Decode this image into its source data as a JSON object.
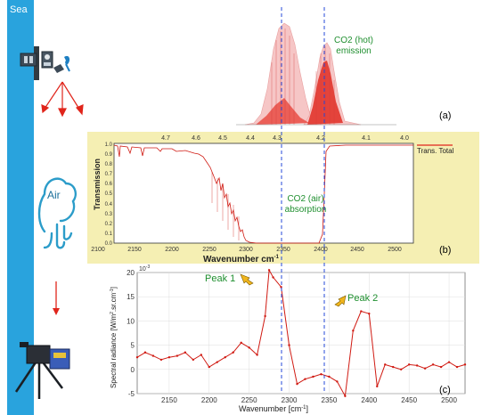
{
  "left_strip": {
    "label": "Sea",
    "color": "#29a3dd"
  },
  "air": {
    "label": "Air"
  },
  "panel_a": {
    "letter": "(a)",
    "annotation_line1": "CO2 (hot)",
    "annotation_line2": "emission"
  },
  "panel_b": {
    "letter": "(b)",
    "ylabel": "Transmission",
    "xlabel": "Wavenumber cm",
    "xlabel_sup": "-1",
    "top_ticks": [
      "4.7",
      "4.6",
      "4.5",
      "4.4",
      "4.3",
      "4.2",
      "4.1",
      "4.0"
    ],
    "bottom_ticks": [
      "2100",
      "2150",
      "2200",
      "2250",
      "2300",
      "2350",
      "2400",
      "2450",
      "2500"
    ],
    "y_ticks": [
      "0.0",
      "0.1",
      "0.2",
      "0.3",
      "0.4",
      "0.5",
      "0.6",
      "0.7",
      "0.8",
      "0.9",
      "1.0"
    ],
    "legend": "Trans. Total",
    "annotation_line1": "CO2 (air)",
    "annotation_line2": "absorption",
    "background": "#f5efb3"
  },
  "panel_c": {
    "letter": "(c)",
    "exponent": "10",
    "exponent_sup": "-3",
    "ylabel": "Spectral radiance [W/m",
    "ylabel_sup": "2",
    "ylabel_end": ".sr.cm",
    "ylabel_sup2": "-1",
    "ylabel_close": "]",
    "xlabel": "Wavenumber [cm",
    "xlabel_sup": "-1",
    "xlabel_close": "]",
    "peak1": "Peak 1",
    "peak2": "Peak 2"
  },
  "chart_data": [
    {
      "type": "line",
      "xlim": [
        2100,
        2500
      ],
      "ylim": [
        0,
        1.0
      ],
      "ylabel": "Transmission",
      "xlabel": "Wavenumber cm-1",
      "series": [
        {
          "name": "Trans. Total",
          "x": [
            2100,
            2103,
            2106,
            2110,
            2120,
            2130,
            2140,
            2150,
            2160,
            2170,
            2180,
            2190,
            2200,
            2210,
            2220,
            2230,
            2240,
            2250,
            2260,
            2270,
            2280,
            2290,
            2300,
            2360,
            2365,
            2370,
            2380,
            2400,
            2450,
            2500
          ],
          "y": [
            0.99,
            0.9,
            0.99,
            0.98,
            0.99,
            0.97,
            0.98,
            0.96,
            0.98,
            0.99,
            0.97,
            0.96,
            0.95,
            0.93,
            0.85,
            0.75,
            0.65,
            0.5,
            0.35,
            0.2,
            0.08,
            0.02,
            0.0,
            0.0,
            0.3,
            0.9,
            0.98,
            0.99,
            0.99,
            0.99
          ]
        }
      ]
    },
    {
      "type": "line",
      "xlim": [
        2110,
        2520
      ],
      "ylim": [
        -5,
        20
      ],
      "yticks": [
        "20",
        "15",
        "10",
        "5",
        "0",
        "-5"
      ],
      "xticks": [
        "2150",
        "2200",
        "2250",
        "2300",
        "2350",
        "2400",
        "2450",
        "2500"
      ],
      "xlabel": "Wavenumber [cm-1]",
      "ylabel": "Spectral radiance [W/m2.sr.cm-1]",
      "series": [
        {
          "x": [
            2110,
            2120,
            2130,
            2140,
            2150,
            2160,
            2170,
            2180,
            2190,
            2200,
            2210,
            2220,
            2230,
            2240,
            2250,
            2260,
            2270,
            2275,
            2280,
            2290,
            2300,
            2310,
            2320,
            2330,
            2340,
            2350,
            2360,
            2370,
            2380,
            2390,
            2400,
            2410,
            2420,
            2430,
            2440,
            2450,
            2460,
            2470,
            2480,
            2490,
            2500,
            2510,
            2520
          ],
          "y": [
            2.5,
            3.5,
            2.8,
            2.0,
            2.5,
            2.8,
            3.5,
            2.0,
            3.0,
            0.5,
            1.5,
            2.5,
            3.5,
            5.5,
            4.5,
            3.0,
            11.0,
            20.5,
            19.0,
            17.0,
            5.0,
            -3.0,
            -2.0,
            -1.5,
            -1.0,
            -1.5,
            -2.5,
            -5.5,
            8.0,
            12.0,
            11.5,
            -3.5,
            1.0,
            0.5,
            0.0,
            1.0,
            0.8,
            0.2,
            1.0,
            0.5,
            1.5,
            0.5,
            1.0
          ]
        }
      ]
    }
  ]
}
